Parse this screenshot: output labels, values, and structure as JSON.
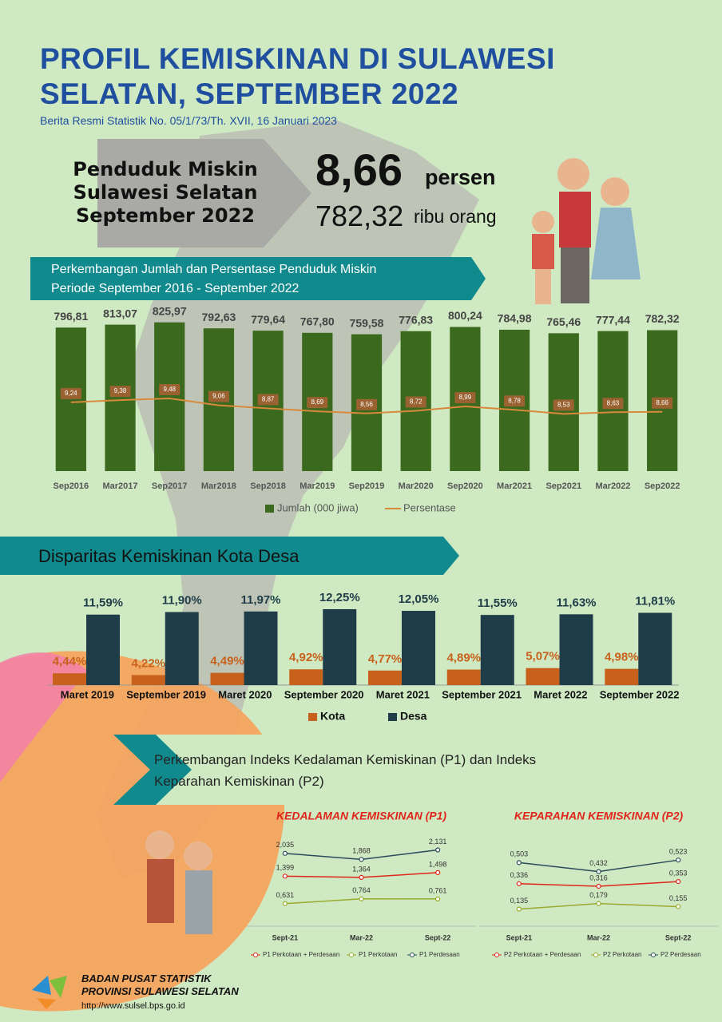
{
  "header": {
    "title": "PROFIL KEMISKINAN DI SULAWESI SELATAN, SEPTEMBER 2022",
    "subtitle": "Berita Resmi Statistik No. 05/1/73/Th. XVII, 16 Januari 2023"
  },
  "highlight": {
    "label": "Penduduk Miskin Sulawesi Selatan September 2022",
    "percent": "8,66",
    "percent_unit": "persen",
    "count": "782,32",
    "count_unit": "ribu orang"
  },
  "section_p": {
    "title": "Perkembangan Indeks Kedalaman Kemiskinan (P1) dan Indeks Keparahan Kemiskinan (P2)"
  },
  "chart_data": [
    {
      "type": "bar_line",
      "title": "Perkembangan Jumlah dan Persentase Penduduk Miskin Periode September 2016 - September 2022",
      "categories": [
        "Sep2016",
        "Mar2017",
        "Sep2017",
        "Mar2018",
        "Sep2018",
        "Mar2019",
        "Sep2019",
        "Mar2020",
        "Sep2020",
        "Mar2021",
        "Sep2021",
        "Mar2022",
        "Sep2022"
      ],
      "ylim": [
        0,
        900
      ],
      "y2lim": [
        5,
        15
      ],
      "series": [
        {
          "name": "Jumlah (000 jiwa)",
          "color": "#3b6a1e",
          "values": [
            796.81,
            813.07,
            825.97,
            792.63,
            779.64,
            767.8,
            759.58,
            776.83,
            800.24,
            784.98,
            765.46,
            777.44,
            782.32
          ],
          "value_labels": [
            "796,81",
            "813,07",
            "825,97",
            "792,63",
            "779,64",
            "767,80",
            "759,58",
            "776,83",
            "800,24",
            "784,98",
            "765,46",
            "777,44",
            "782,32"
          ]
        },
        {
          "name": "Persentase",
          "color": "#d9893c",
          "axis": "y2",
          "values": [
            9.24,
            9.38,
            9.48,
            9.06,
            8.87,
            8.69,
            8.56,
            8.72,
            8.99,
            8.78,
            8.53,
            8.63,
            8.66
          ],
          "value_labels": [
            "9,24",
            "9,38",
            "9,48",
            "9,06",
            "8,87",
            "8,69",
            "8,56",
            "8,72",
            "8,99",
            "8,78",
            "8,53",
            "8,63",
            "8,66"
          ]
        }
      ]
    },
    {
      "type": "grouped_bar",
      "title": "Disparitas Kemiskinan Kota Desa",
      "categories": [
        "Maret 2019",
        "September 2019",
        "Maret 2020",
        "September 2020",
        "Maret 2021",
        "September 2021",
        "Maret 2022",
        "September 2022"
      ],
      "ylim": [
        3,
        14
      ],
      "series": [
        {
          "name": "Kota",
          "color": "#c8611b",
          "values": [
            4.44,
            4.22,
            4.49,
            4.92,
            4.77,
            4.89,
            5.07,
            4.98
          ],
          "value_labels": [
            "4,44%",
            "4,22%",
            "4,49%",
            "4,92%",
            "4,77%",
            "4,89%",
            "5,07%",
            "4,98%"
          ]
        },
        {
          "name": "Desa",
          "color": "#1f3d49",
          "values": [
            11.59,
            11.9,
            11.97,
            12.25,
            12.05,
            11.55,
            11.63,
            11.81
          ],
          "value_labels": [
            "11,59%",
            "11,90%",
            "11,97%",
            "12,25%",
            "12,05%",
            "11,55%",
            "11,63%",
            "11,81%"
          ]
        }
      ]
    },
    {
      "type": "line",
      "title": "KEDALAMAN KEMISKINAN (P1)",
      "categories": [
        "Sept-21",
        "Mar-22",
        "Sept-22"
      ],
      "ylim": [
        0,
        2.5
      ],
      "series": [
        {
          "name": "P1 Perkotaan + Perdesaan",
          "color": "#e0261b",
          "values": [
            1.399,
            1.364,
            1.498
          ],
          "value_labels": [
            "1,399",
            "1,364",
            "1,498"
          ]
        },
        {
          "name": "P1 Perkotaan",
          "color": "#9aab2f",
          "values": [
            0.631,
            0.764,
            0.761
          ],
          "value_labels": [
            "0,631",
            "0,764",
            "0,761"
          ]
        },
        {
          "name": "P1 Perdesaan",
          "color": "#2b4a5c",
          "values": [
            2.035,
            1.868,
            2.131
          ],
          "value_labels": [
            "2,035",
            "1,868",
            "2,131"
          ]
        }
      ]
    },
    {
      "type": "line",
      "title": "KEPARAHAN KEMISKINAN (P2)",
      "categories": [
        "Sept-21",
        "Mar-22",
        "Sept-22"
      ],
      "ylim": [
        0,
        0.6
      ],
      "series": [
        {
          "name": "P2 Perkotaan + Perdesaan",
          "color": "#e0261b",
          "values": [
            0.336,
            0.316,
            0.353
          ],
          "value_labels": [
            "0,336",
            "0,316",
            "0,353"
          ]
        },
        {
          "name": "P2 Perkotaan",
          "color": "#9aab2f",
          "values": [
            0.135,
            0.179,
            0.155
          ],
          "value_labels": [
            "0,135",
            "0,179",
            "0,155"
          ]
        },
        {
          "name": "P2 Perdesaan",
          "color": "#2b4a5c",
          "values": [
            0.503,
            0.432,
            0.523
          ],
          "value_labels": [
            "0,503",
            "0,432",
            "0,523"
          ]
        }
      ]
    }
  ],
  "footer": {
    "org": "BADAN PUSAT STATISTIK",
    "province": "PROVINSI SULAWESI SELATAN",
    "url": "http://www.sulsel.bps.go.id"
  }
}
